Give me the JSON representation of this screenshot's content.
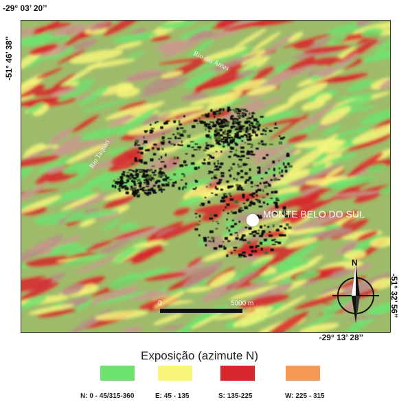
{
  "coords": {
    "top_left": "-29° 03’ 20’’",
    "left_side": "-51° 46’ 38’’",
    "bottom_right": "-29° 13’ 28’’",
    "right_side": "-51° 32’ 56’’"
  },
  "map": {
    "rivers": [
      {
        "name": "Rio das Antas"
      },
      {
        "name": "Rio Taquari"
      }
    ],
    "city_label": "MONTE BELO DO SUL",
    "scale": {
      "start_label": "0",
      "end_label": "5000 m"
    },
    "north_label": "N"
  },
  "legend": {
    "title": "Exposição (azimute N)",
    "items": [
      {
        "label": "N: 0 - 45/315-360",
        "color": "#6ee26e"
      },
      {
        "label": "E: 45 - 135",
        "color": "#f6f57a"
      },
      {
        "label": "S: 135-225",
        "color": "#d7262b"
      },
      {
        "label": "W: 225 - 315",
        "color": "#f49a55"
      }
    ]
  }
}
